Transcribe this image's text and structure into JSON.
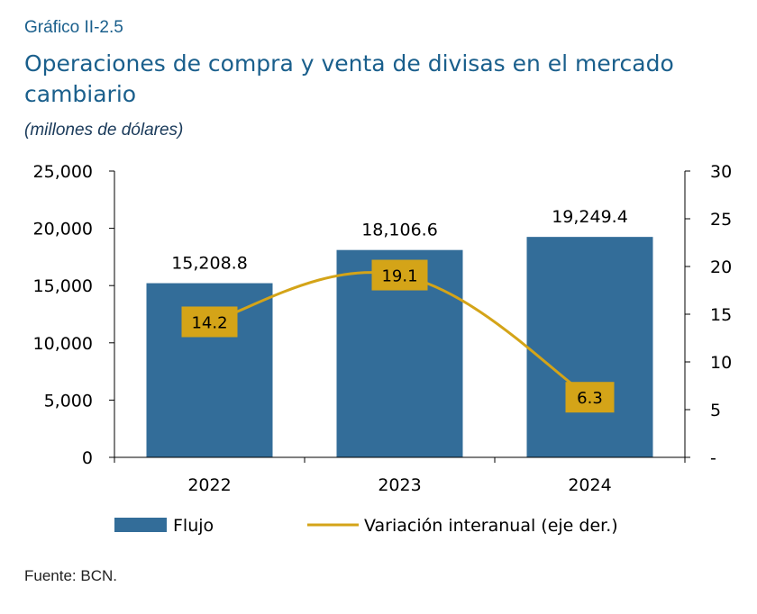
{
  "figure_label": "Gráfico II-2.5",
  "source": "Fuente: BCN.",
  "chart_data": {
    "type": "bar",
    "title": "Operaciones de compra y venta de divisas en el mercado cambiario",
    "subtitle": "(millones de dólares)",
    "categories": [
      "2022",
      "2023",
      "2024"
    ],
    "series": [
      {
        "name": "Flujo",
        "type": "bar",
        "axis": "left",
        "values": [
          15208.8,
          18106.6,
          19249.4
        ],
        "labels": [
          "15,208.8",
          "18,106.6",
          "19,249.4"
        ],
        "color": "#336d99"
      },
      {
        "name": "Variación interanual (eje der.)",
        "type": "line",
        "axis": "right",
        "values": [
          14.2,
          19.1,
          6.3
        ],
        "labels": [
          "14.2",
          "19.1",
          "6.3"
        ],
        "color": "#d4a418",
        "label_bg": "#d4a418"
      }
    ],
    "y_left": {
      "min": 0,
      "max": 25000,
      "ticks": [
        0,
        5000,
        10000,
        15000,
        20000,
        25000
      ],
      "tick_labels": [
        "0",
        "5,000",
        "10,000",
        "15,000",
        "20,000",
        "25,000"
      ]
    },
    "y_right": {
      "min": 0,
      "max": 30,
      "ticks": [
        0,
        5,
        10,
        15,
        20,
        25,
        30
      ],
      "tick_labels": [
        "-",
        "5",
        "10",
        "15",
        "20",
        "25",
        "30"
      ]
    },
    "grid": false,
    "legend_position": "bottom"
  }
}
